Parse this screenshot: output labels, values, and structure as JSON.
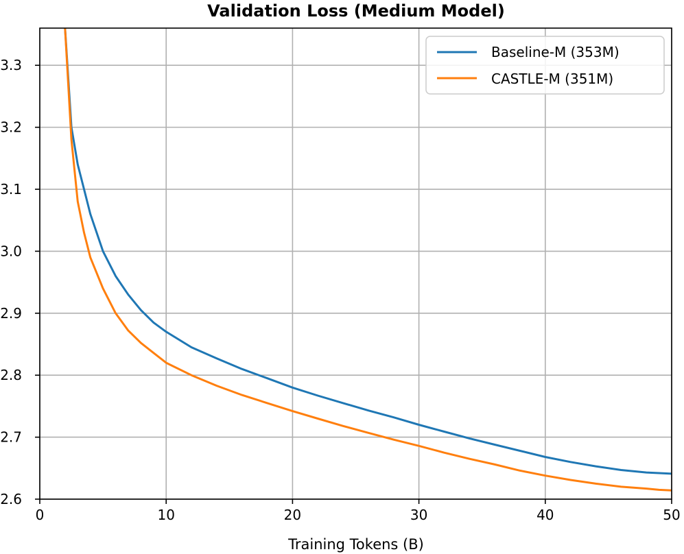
{
  "chart_data": {
    "type": "line",
    "title": "Validation Loss (Medium Model)",
    "xlabel": "Training Tokens (B)",
    "ylabel": "",
    "xlim": [
      0,
      50
    ],
    "ylim": [
      2.6,
      3.36
    ],
    "xticks": [
      "0",
      "10",
      "20",
      "30",
      "40",
      "50"
    ],
    "yticks": [
      "2.6",
      "2.7",
      "2.8",
      "2.9",
      "3.0",
      "3.1",
      "3.2",
      "3.3"
    ],
    "grid": true,
    "legend_position": "top-right",
    "x": [
      2,
      2.5,
      3,
      3.5,
      4,
      5,
      6,
      7,
      8,
      9,
      10,
      12,
      14,
      16,
      18,
      20,
      22,
      24,
      26,
      28,
      30,
      32,
      34,
      36,
      38,
      40,
      42,
      44,
      46,
      48,
      49,
      50
    ],
    "series": [
      {
        "name": "Baseline-M (353M)",
        "color": "#1f77b4",
        "values": [
          3.36,
          3.2,
          3.14,
          3.1,
          3.06,
          3.0,
          2.96,
          2.93,
          2.905,
          2.885,
          2.87,
          2.845,
          2.827,
          2.81,
          2.795,
          2.78,
          2.767,
          2.755,
          2.743,
          2.732,
          2.72,
          2.709,
          2.698,
          2.688,
          2.678,
          2.668,
          2.66,
          2.653,
          2.647,
          2.643,
          2.642,
          2.641
        ]
      },
      {
        "name": "CASTLE-M (351M)",
        "color": "#ff7f0e",
        "values": [
          3.36,
          3.18,
          3.08,
          3.03,
          2.99,
          2.94,
          2.9,
          2.872,
          2.852,
          2.836,
          2.82,
          2.8,
          2.783,
          2.768,
          2.755,
          2.742,
          2.73,
          2.718,
          2.707,
          2.696,
          2.686,
          2.675,
          2.665,
          2.656,
          2.646,
          2.638,
          2.631,
          2.625,
          2.62,
          2.617,
          2.615,
          2.614
        ]
      }
    ]
  }
}
